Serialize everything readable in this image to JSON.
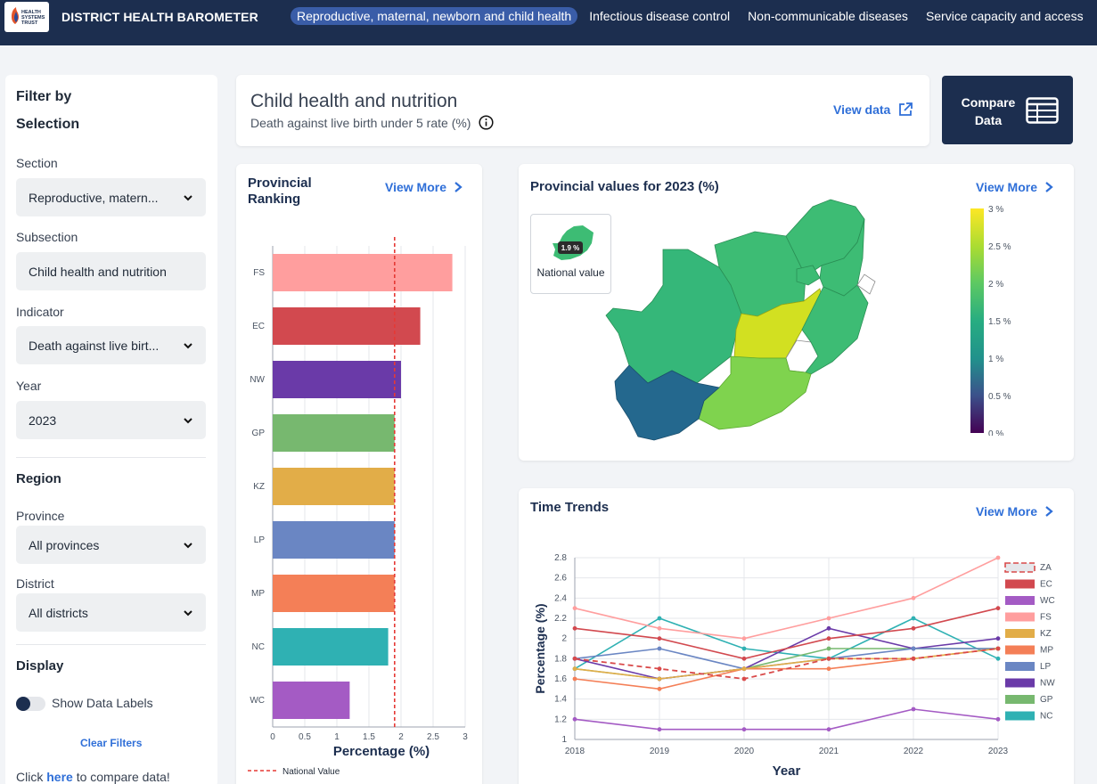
{
  "header": {
    "logo_text": "HEALTH SYSTEMS TRUST",
    "app_title": "DISTRICT HEALTH BAROMETER",
    "nav": [
      {
        "label": "Reproductive, maternal, newborn and child health",
        "active": true
      },
      {
        "label": "Infectious disease control",
        "active": false
      },
      {
        "label": "Non-communicable diseases",
        "active": false
      },
      {
        "label": "Service capacity and access",
        "active": false
      }
    ]
  },
  "sidebar": {
    "filter_by": "Filter by",
    "selection": "Selection",
    "section_label": "Section",
    "section_value": "Reproductive, matern...",
    "subsection_label": "Subsection",
    "subsection_value": "Child health and nutrition",
    "indicator_label": "Indicator",
    "indicator_value": "Death against live birt...",
    "year_label": "Year",
    "year_value": "2023",
    "region": "Region",
    "province_label": "Province",
    "province_value": "All provinces",
    "district_label": "District",
    "district_value": "All districts",
    "display": "Display",
    "show_labels": "Show Data Labels",
    "clear_filters": "Clear Filters",
    "compare_prefix": "Click ",
    "compare_link": "here",
    "compare_suffix": " to compare data!"
  },
  "indicator_card": {
    "title": "Child health and nutrition",
    "subtitle": "Death against live birth under 5 rate (%)",
    "view_data": "View data"
  },
  "compare_button": {
    "line1": "Compare",
    "line2": "Data"
  },
  "ranking": {
    "title_line1": "Provincial",
    "title_line2": "Ranking",
    "view_more": "View More"
  },
  "map": {
    "title": "Provincial values for 2023 (%)",
    "view_more": "View More",
    "national_badge": "1.9 %",
    "national_label": "National value",
    "legend_ticks": [
      "3 %",
      "2.5 %",
      "2 %",
      "1.5 %",
      "1 %",
      "0.5 %",
      "0 %"
    ],
    "colors": {
      "FS": "#d2e021",
      "KZ": "#7fd34e",
      "EC": "#3dbc74",
      "WC": "#24688e",
      "NC": "#35b779",
      "NW": "#3dbc74",
      "LP": "#3dbc74",
      "MP": "#3dbc74",
      "GP": "#3dbc74"
    }
  },
  "trends": {
    "title": "Time Trends",
    "view_more": "View More"
  },
  "chart_data": [
    {
      "type": "bar",
      "orientation": "horizontal",
      "categories": [
        "FS",
        "EC",
        "NW",
        "GP",
        "KZ",
        "LP",
        "MP",
        "NC",
        "WC"
      ],
      "values": [
        2.8,
        2.3,
        2.0,
        1.9,
        1.9,
        1.9,
        1.9,
        1.8,
        1.2
      ],
      "colors": [
        "#ff9e9e",
        "#d2494f",
        "#6a3aa8",
        "#77b86f",
        "#e2ad48",
        "#6a86c3",
        "#f47f57",
        "#2fb1b3",
        "#a45bc4"
      ],
      "xlabel": "Percentage (%)",
      "xlim": [
        0,
        3
      ],
      "xticks": [
        "0",
        "0.5",
        "1",
        "1.5",
        "2",
        "2.5",
        "3"
      ],
      "reference_line": {
        "name": "National Value",
        "value": 1.9,
        "color": "#e53935"
      },
      "legend": "bottom",
      "grid": true
    },
    {
      "type": "line",
      "x": [
        "2018",
        "2019",
        "2020",
        "2021",
        "2022",
        "2023"
      ],
      "xlabel": "Year",
      "ylabel": "Percentage (%)",
      "ylim": [
        1,
        2.8
      ],
      "yticks": [
        "1",
        "1.2",
        "1.4",
        "1.6",
        "1.8",
        "2",
        "2.2",
        "2.4",
        "2.6",
        "2.8"
      ],
      "legend": "right",
      "grid": true,
      "series": [
        {
          "name": "ZA",
          "color": "#d94a4a",
          "dashed": true,
          "values": [
            1.8,
            1.7,
            1.6,
            1.8,
            1.8,
            1.9
          ]
        },
        {
          "name": "EC",
          "color": "#d2494f",
          "values": [
            2.1,
            2.0,
            1.8,
            2.0,
            2.1,
            2.3
          ]
        },
        {
          "name": "WC",
          "color": "#a45bc4",
          "values": [
            1.2,
            1.1,
            1.1,
            1.1,
            1.3,
            1.2
          ]
        },
        {
          "name": "FS",
          "color": "#ff9e9e",
          "values": [
            2.3,
            2.1,
            2.0,
            2.2,
            2.4,
            2.8
          ]
        },
        {
          "name": "KZ",
          "color": "#e2ad48",
          "values": [
            1.7,
            1.6,
            1.7,
            1.8,
            1.8,
            1.9
          ]
        },
        {
          "name": "MP",
          "color": "#f47f57",
          "values": [
            1.6,
            1.5,
            1.7,
            1.7,
            1.8,
            1.9
          ]
        },
        {
          "name": "LP",
          "color": "#6a86c3",
          "values": [
            1.8,
            1.9,
            1.7,
            1.8,
            1.9,
            1.9
          ]
        },
        {
          "name": "NW",
          "color": "#6a3aa8",
          "values": [
            1.8,
            1.6,
            1.7,
            2.1,
            1.9,
            2.0
          ]
        },
        {
          "name": "GP",
          "color": "#77b86f",
          "values": [
            1.7,
            1.6,
            1.7,
            1.9,
            1.9,
            1.9
          ]
        },
        {
          "name": "NC",
          "color": "#2fb1b3",
          "values": [
            1.7,
            2.2,
            1.9,
            1.8,
            2.2,
            1.8
          ]
        }
      ]
    }
  ]
}
